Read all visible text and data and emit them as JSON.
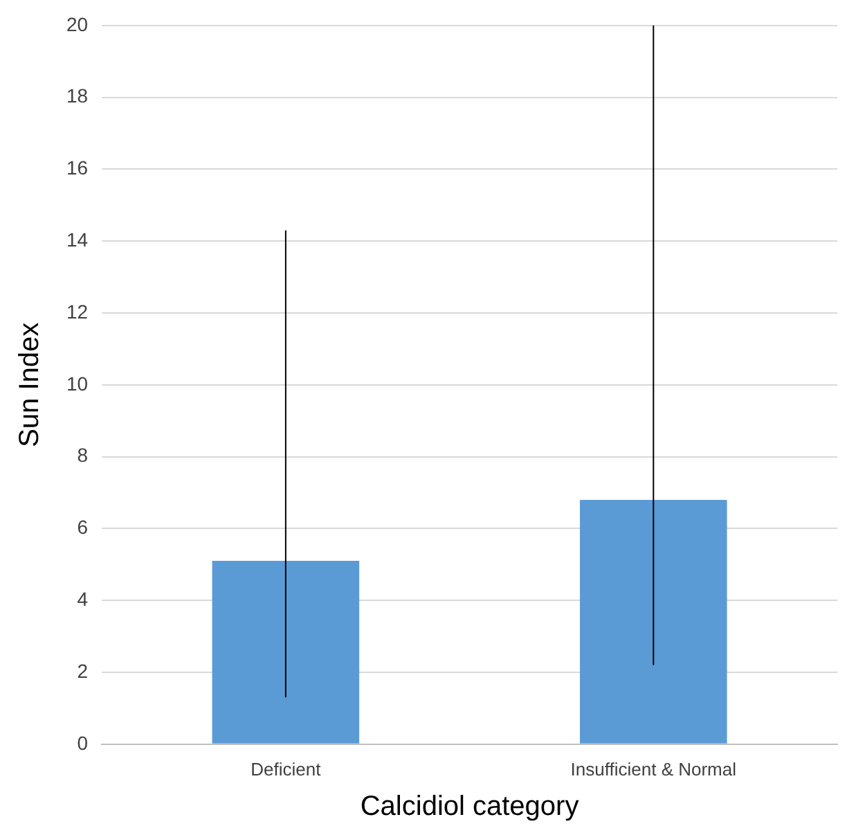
{
  "chart_data": {
    "type": "bar",
    "xlabel": "Calcidiol category",
    "ylabel": "Sun Index",
    "categories": [
      "Deficient",
      "Insufficient & Normal"
    ],
    "values": [
      5.1,
      6.8
    ],
    "errors": [
      [
        1.3,
        14.3
      ],
      [
        2.2,
        20
      ]
    ],
    "color": "#5b9bd5",
    "ylim": [
      0,
      20
    ],
    "yticks": [
      0,
      2,
      4,
      6,
      8,
      10,
      12,
      14,
      16,
      18,
      20
    ],
    "grid": "y",
    "legend": false
  }
}
